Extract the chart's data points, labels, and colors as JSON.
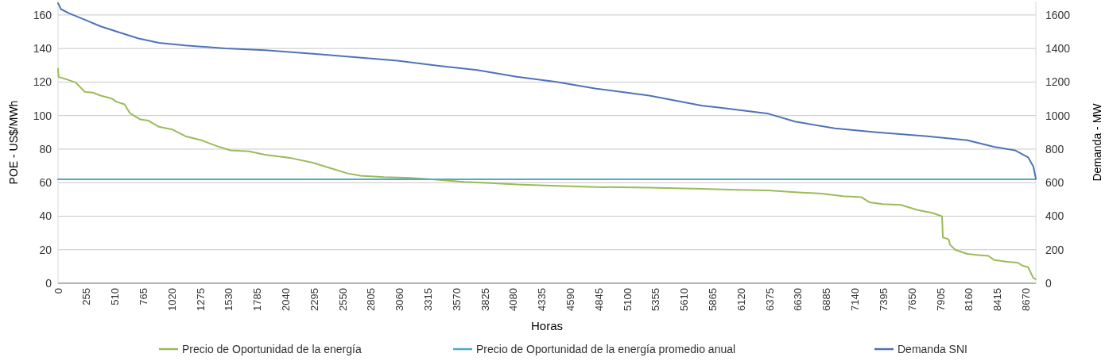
{
  "chart_data": {
    "type": "line",
    "xlabel": "Horas",
    "ylabel": "POE - US$/MWh",
    "y2label": "Demanda - MW",
    "xlim": [
      0,
      8760
    ],
    "xticks": [
      0,
      255,
      510,
      765,
      1020,
      1275,
      1530,
      1785,
      2040,
      2295,
      2550,
      2805,
      3060,
      3315,
      3570,
      3825,
      4080,
      4335,
      4590,
      4845,
      5100,
      5355,
      5610,
      5865,
      6120,
      6375,
      6630,
      6885,
      7140,
      7395,
      7650,
      7905,
      8160,
      8415,
      8670
    ],
    "ylim": [
      0,
      168
    ],
    "yticks": [
      0,
      20,
      40,
      60,
      80,
      100,
      120,
      140,
      160
    ],
    "y2lim": [
      0,
      1680
    ],
    "y2ticks": [
      0,
      200,
      400,
      600,
      800,
      1000,
      1200,
      1400,
      1600
    ],
    "grid": "y",
    "legend": "bottom",
    "line_style": "solid",
    "marker": "none",
    "series": [
      {
        "name": "Precio de Oportunidad de la energía",
        "color": "#9bbb59",
        "x": [
          0,
          5,
          73,
          157,
          240,
          311,
          382,
          477,
          525,
          596,
          643,
          738,
          810,
          904,
          1023,
          1142,
          1284,
          1427,
          1546,
          1712,
          1854,
          2091,
          2281,
          2448,
          2590,
          2709,
          2922,
          3160,
          3397,
          3635,
          3872,
          4110,
          4466,
          4822,
          5297,
          5772,
          6009,
          6365,
          6603,
          6840,
          7030,
          7196,
          7268,
          7386,
          7552,
          7695,
          7837,
          7920,
          7927,
          7979,
          7991,
          8039,
          8146,
          8264,
          8336,
          8383,
          8502,
          8597,
          8644,
          8691,
          8738,
          8760
        ],
        "values": [
          128,
          123,
          121.7,
          119.8,
          114.2,
          113.7,
          111.9,
          110.3,
          108.2,
          106.7,
          101.5,
          97.7,
          97,
          93.3,
          91.7,
          87.7,
          85.3,
          81.7,
          79.3,
          78.7,
          76.7,
          74.6,
          71.9,
          68.5,
          65.6,
          64.1,
          63.3,
          62.8,
          61.7,
          60.4,
          59.8,
          58.9,
          58.1,
          57.4,
          57,
          56.3,
          55.9,
          55.4,
          54.3,
          53.5,
          51.9,
          51.4,
          48.3,
          47.2,
          46.7,
          43.8,
          41.9,
          39.9,
          27.3,
          26.2,
          23,
          19.9,
          17.5,
          16.7,
          16.3,
          14,
          12.8,
          12.3,
          10.4,
          9.6,
          3,
          2.5
        ]
      },
      {
        "name": "Precio de Oportunidad de la energía promedio anual",
        "color": "#4bacc6",
        "x": [
          0,
          8760
        ],
        "values": [
          62,
          62
        ]
      },
      {
        "name": "Demanda SNI",
        "color": "#4f72b8",
        "axis": "y2",
        "x": [
          0,
          26,
          97,
          240,
          382,
          525,
          715,
          904,
          1142,
          1498,
          1854,
          2329,
          2804,
          3041,
          3397,
          3754,
          4110,
          4466,
          4822,
          5297,
          5772,
          5890,
          6365,
          6603,
          6959,
          7315,
          7790,
          8146,
          8383,
          8573,
          8691,
          8738,
          8760
        ],
        "values": [
          1671,
          1635,
          1611,
          1572,
          1532,
          1501,
          1461,
          1434,
          1418,
          1401,
          1390,
          1366,
          1340,
          1327,
          1298,
          1272,
          1232,
          1201,
          1161,
          1119,
          1059,
          1051,
          1011,
          964,
          924,
          901,
          877,
          853,
          814,
          793,
          751,
          696,
          625
        ]
      }
    ]
  }
}
